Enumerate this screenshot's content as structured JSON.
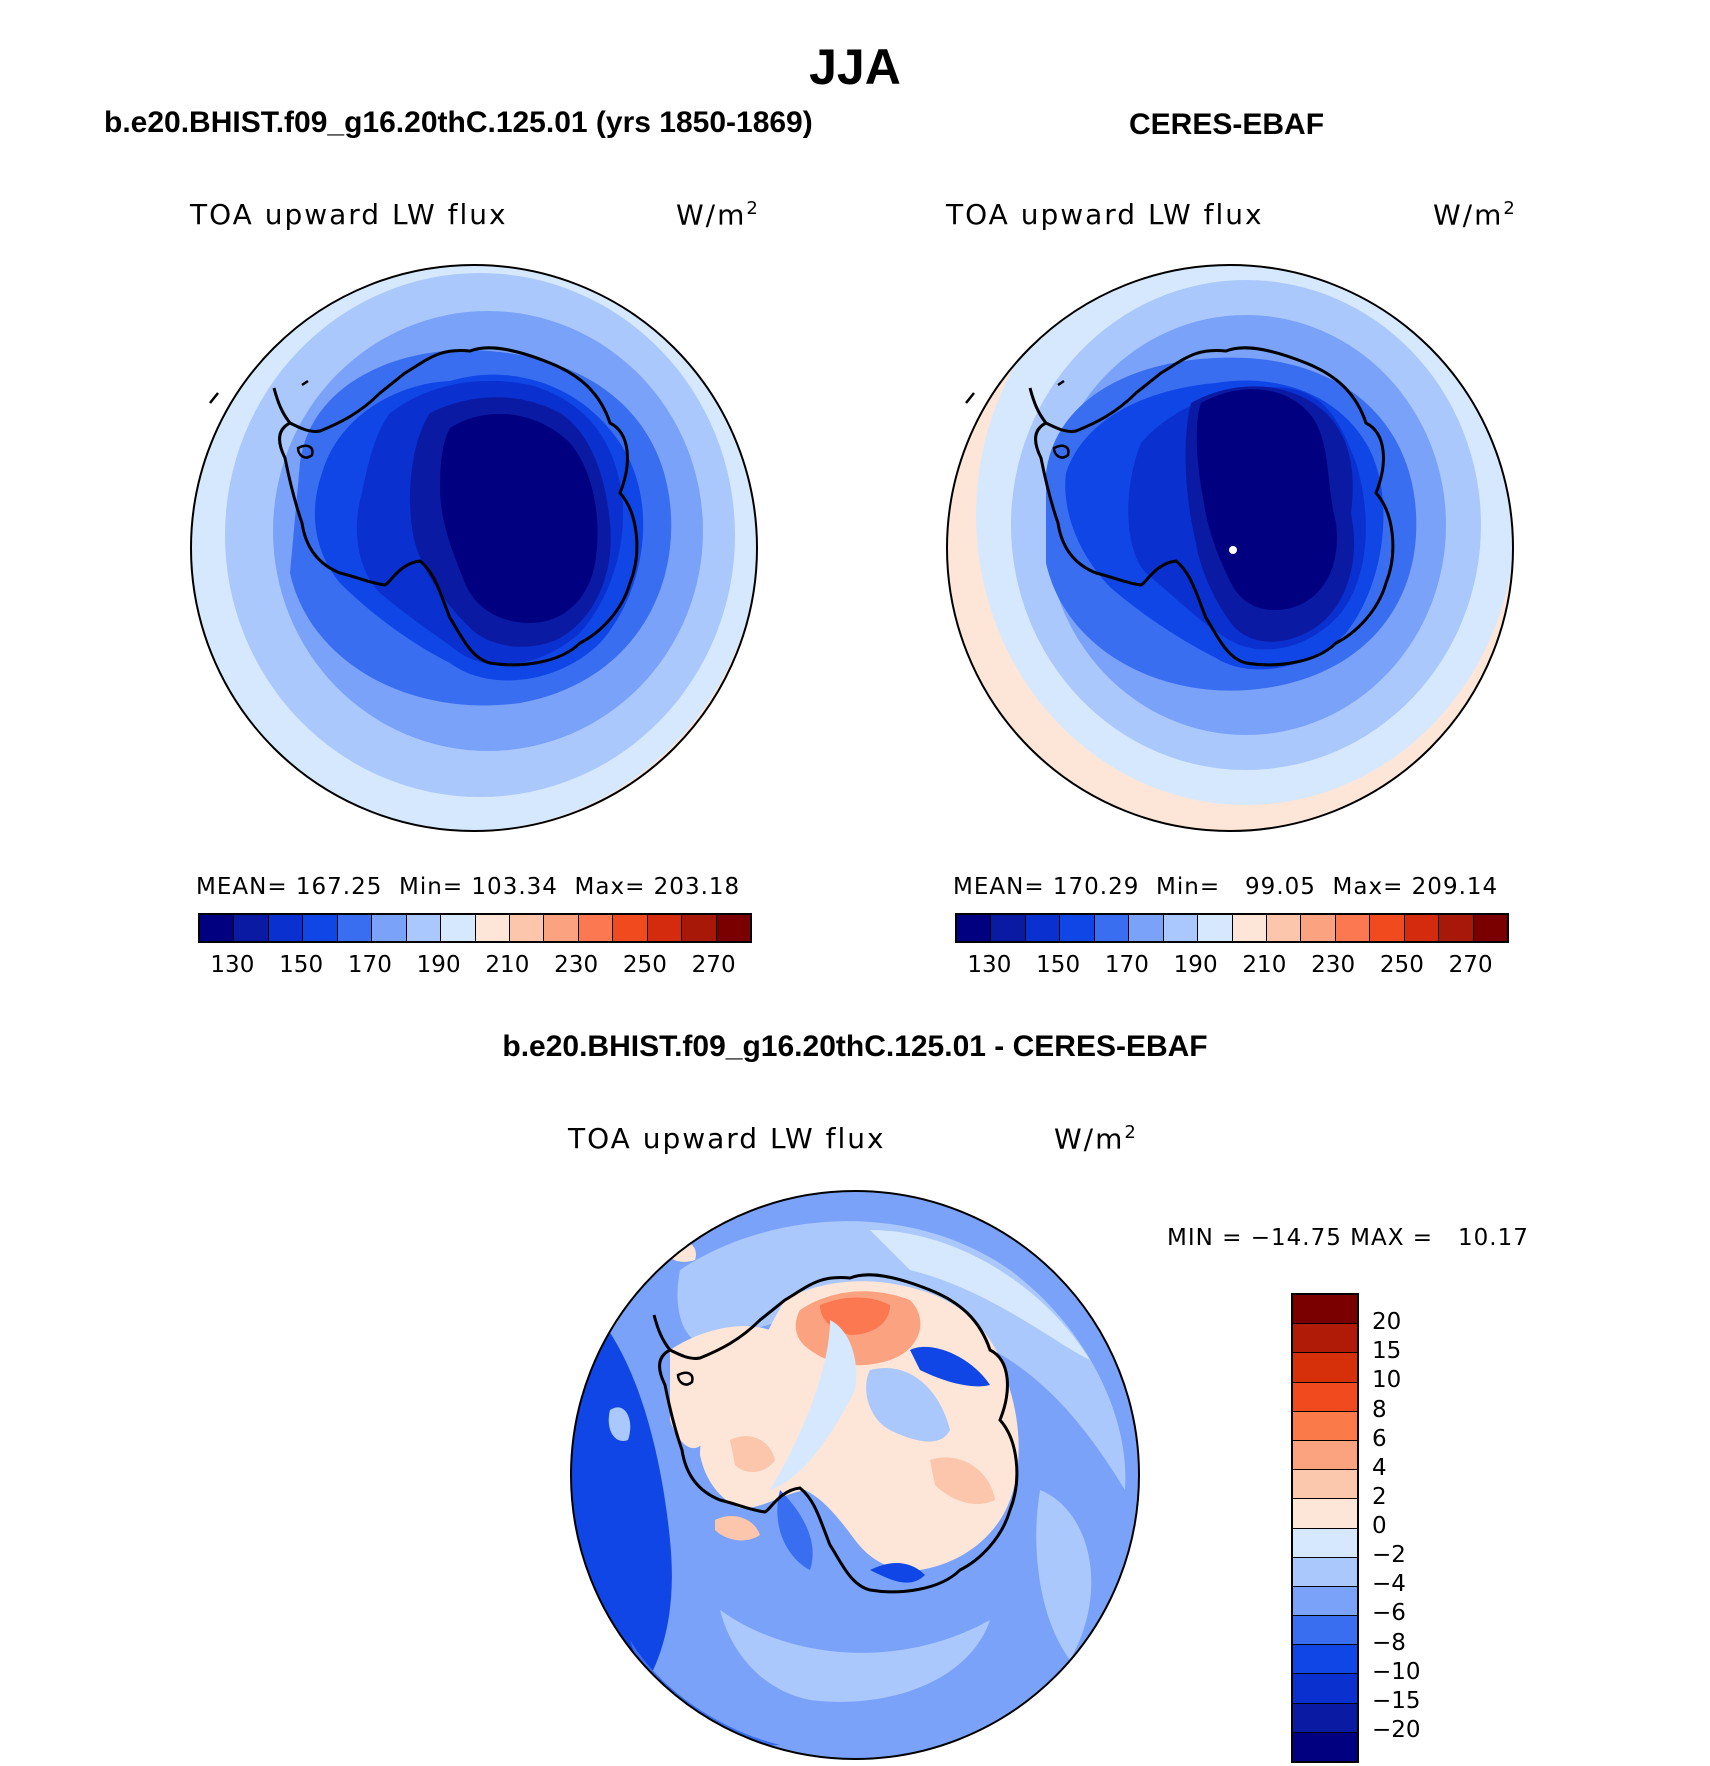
{
  "title": "JJA",
  "panels": [
    {
      "id": "model",
      "title": "b.e20.BHIST.f09_g16.20thC.125.01 (yrs 1850-1869)",
      "subtitle": "TOA upward LW flux",
      "units": "W/m",
      "units_sup": "2",
      "stats": {
        "mean_label": "MEAN=",
        "mean": "167.25",
        "min_label": "Min=",
        "min": "103.34",
        "max_label": "Max=",
        "max": "203.18"
      }
    },
    {
      "id": "obs",
      "title": "CERES-EBAF",
      "subtitle": "TOA upward LW flux",
      "units": "W/m",
      "units_sup": "2",
      "stats": {
        "mean_label": "MEAN=",
        "mean": "170.29",
        "min_label": "Min=",
        "min": "99.05",
        "max_label": "Max=",
        "max": "209.14"
      }
    },
    {
      "id": "diff",
      "title": "b.e20.BHIST.f09_g16.20thC.125.01 - CERES-EBAF",
      "subtitle": "TOA upward LW flux",
      "units": "W/m",
      "units_sup": "2",
      "minmax": "MIN = −14.75 MAX =   10.17"
    }
  ],
  "colorbar_abs": {
    "colors": [
      "#000080",
      "#0a1aa3",
      "#0a30cf",
      "#1046e6",
      "#3a6ef0",
      "#7aa2f8",
      "#aac8fc",
      "#d6e8fd",
      "#fde6d8",
      "#fcc6ac",
      "#fba281",
      "#fb7850",
      "#f04a1e",
      "#d42a0e",
      "#a81808",
      "#7a0000"
    ],
    "tick_labels": [
      "130",
      "150",
      "170",
      "190",
      "210",
      "230",
      "250",
      "270"
    ]
  },
  "colorbar_diff": {
    "colors": [
      "#7a0000",
      "#b01b08",
      "#d6300a",
      "#f04a1e",
      "#fb7a4a",
      "#fba37e",
      "#fcc8ad",
      "#fde6d8",
      "#d6e8fd",
      "#aac8fc",
      "#7aa2f8",
      "#3a6ef0",
      "#1046e6",
      "#0a30cf",
      "#0a1aa3",
      "#000080"
    ],
    "tick_labels": [
      "20",
      "15",
      "10",
      "8",
      "6",
      "4",
      "2",
      "0",
      "−2",
      "−4",
      "−6",
      "−8",
      "−10",
      "−15",
      "−20"
    ]
  },
  "chart_data": [
    {
      "type": "heatmap",
      "title": "b.e20.BHIST.f09_g16.20thC.125.01 (yrs 1850-1869)",
      "variable": "TOA upward LW flux",
      "units": "W/m2",
      "projection": "south polar stereographic",
      "levels": [
        130,
        140,
        150,
        160,
        170,
        180,
        190,
        200,
        210,
        220,
        230,
        240,
        250,
        260,
        270
      ],
      "mean": 167.25,
      "min": 103.34,
      "max": 203.18,
      "rings_outer_to_inner": [
        205,
        195,
        185,
        175,
        165,
        155,
        145,
        135,
        120
      ]
    },
    {
      "type": "heatmap",
      "title": "CERES-EBAF",
      "variable": "TOA upward LW flux",
      "units": "W/m2",
      "projection": "south polar stereographic",
      "levels": [
        130,
        140,
        150,
        160,
        170,
        180,
        190,
        200,
        210,
        220,
        230,
        240,
        250,
        260,
        270
      ],
      "mean": 170.29,
      "min": 99.05,
      "max": 209.14,
      "rings_outer_to_inner": [
        205,
        195,
        185,
        175,
        165,
        155,
        145,
        135,
        120
      ]
    },
    {
      "type": "heatmap",
      "title": "b.e20.BHIST.f09_g16.20thC.125.01 - CERES-EBAF",
      "variable": "TOA upward LW flux",
      "units": "W/m2",
      "projection": "south polar stereographic",
      "levels": [
        -20,
        -15,
        -10,
        -8,
        -6,
        -4,
        -2,
        0,
        2,
        4,
        6,
        8,
        10,
        15,
        20
      ],
      "min": -14.75,
      "max": 10.17
    }
  ]
}
